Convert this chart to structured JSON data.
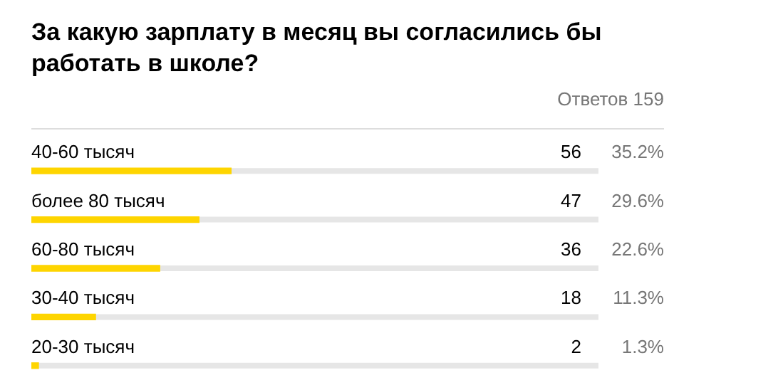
{
  "chart_data": {
    "type": "bar",
    "orientation": "horizontal",
    "title": "За какую зарплату в месяц вы согласились бы работать в школе?",
    "annotations": [
      "Ответов 159",
      "35.2%",
      "29.6%",
      "22.6%",
      "11.3%",
      "1.3%"
    ],
    "categories": [
      "40-60 тысяч",
      "более 80 тысяч",
      "60-80 тысяч",
      "30-40 тысяч",
      "20-30 тысяч"
    ],
    "values": [
      56,
      47,
      36,
      18,
      2
    ],
    "color": "#fed500",
    "xlim": [
      0,
      159
    ],
    "data_labels": true,
    "tick_labels": "y"
  }
}
